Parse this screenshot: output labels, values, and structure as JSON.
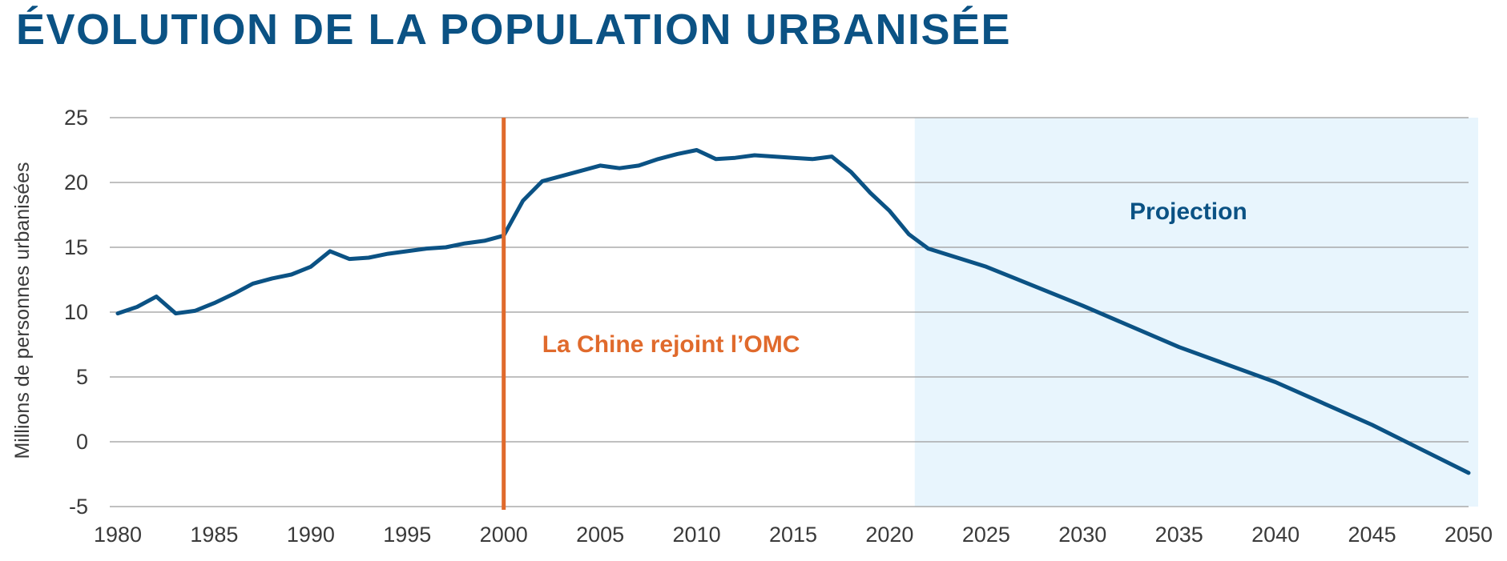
{
  "title": "ÉVOLUTION DE LA POPULATION URBANISÉE",
  "colors": {
    "title": "#0b5284",
    "line": "#0b5284",
    "event_line": "#e06a2c",
    "projection_bg": "#e8f5fd",
    "grid": "#9a9a9a",
    "text": "#3a3a3a"
  },
  "chart_data": {
    "type": "line",
    "title": "ÉVOLUTION DE LA POPULATION URBANISÉE",
    "xlabel": "",
    "ylabel": "Millions de personnes urbanisées",
    "xlim": [
      1980,
      2050
    ],
    "ylim": [
      -5,
      25
    ],
    "x_ticks": [
      1980,
      1985,
      1990,
      1995,
      2000,
      2005,
      2010,
      2015,
      2020,
      2025,
      2030,
      2035,
      2040,
      2045,
      2050
    ],
    "y_ticks": [
      -5,
      0,
      5,
      10,
      15,
      20,
      25
    ],
    "grid": "horizontal",
    "series": [
      {
        "x": [
          1980,
          1981,
          1982,
          1983,
          1984,
          1985,
          1986,
          1987,
          1988,
          1989,
          1990,
          1991,
          1992,
          1993,
          1994,
          1995,
          1996,
          1997,
          1998,
          1999,
          2000,
          2001,
          2002,
          2003,
          2004,
          2005,
          2006,
          2007,
          2008,
          2009,
          2010,
          2011,
          2012,
          2013,
          2014,
          2015,
          2016,
          2017,
          2018,
          2019,
          2020,
          2021,
          2022,
          2025,
          2030,
          2035,
          2040,
          2045,
          2050
        ],
        "values": [
          9.9,
          10.4,
          11.2,
          9.9,
          10.1,
          10.7,
          11.4,
          12.2,
          12.6,
          12.9,
          13.5,
          14.7,
          14.1,
          14.2,
          14.5,
          14.7,
          14.9,
          15.0,
          15.3,
          15.5,
          15.9,
          18.6,
          20.1,
          20.5,
          20.9,
          21.3,
          21.1,
          21.3,
          21.8,
          22.2,
          22.5,
          21.8,
          21.9,
          22.1,
          22.0,
          21.9,
          21.8,
          22.0,
          20.8,
          19.2,
          17.8,
          16.0,
          14.9,
          13.5,
          10.5,
          7.3,
          4.6,
          1.3,
          -2.4
        ]
      }
    ],
    "projection": {
      "from": 2021.3,
      "to": 2050.5,
      "label": "Projection"
    },
    "event": {
      "x": 2000,
      "label": "La Chine rejoint l’OMC"
    }
  }
}
